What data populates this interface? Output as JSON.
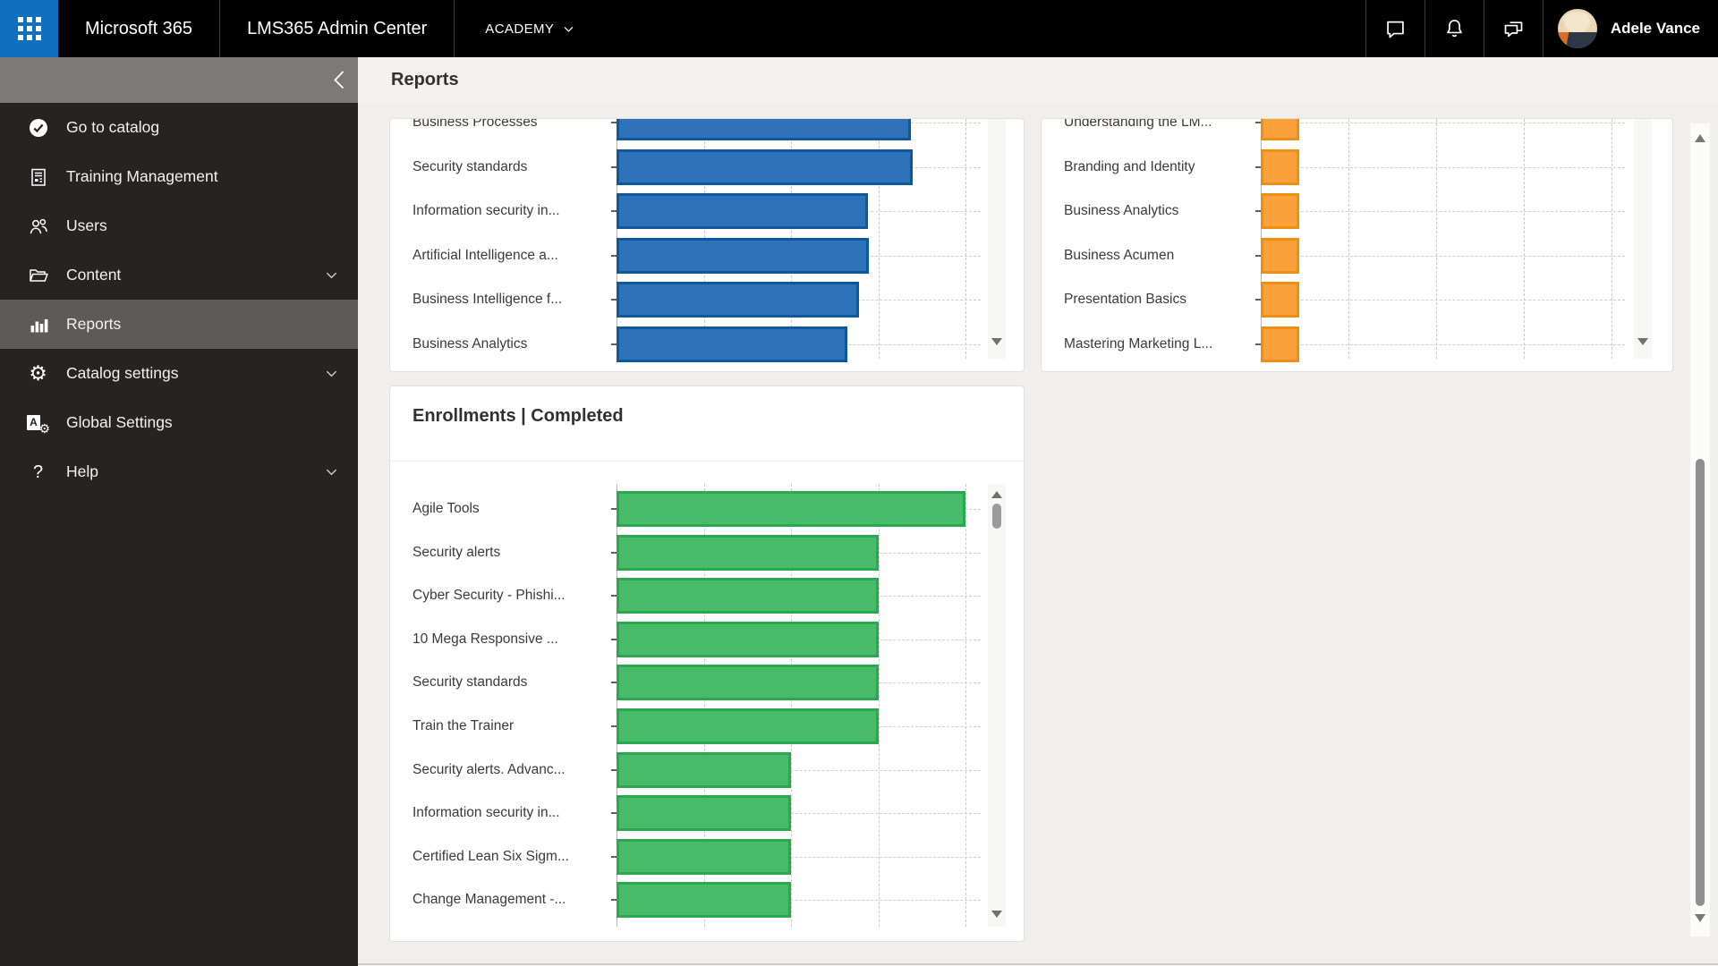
{
  "topbar": {
    "product": "Microsoft 365",
    "app": "LMS365 Admin Center",
    "tenant": "ACADEMY",
    "user": "Adele Vance",
    "actions": [
      {
        "icon": "chat"
      },
      {
        "icon": "bell"
      },
      {
        "icon": "feedback"
      }
    ]
  },
  "sidebar": {
    "collapse_icon": "chevron-left",
    "items": [
      {
        "icon": "check-circle",
        "label": "Go to catalog",
        "chevron": false,
        "active": false
      },
      {
        "icon": "document",
        "label": "Training Management",
        "chevron": false,
        "active": false
      },
      {
        "icon": "users",
        "label": "Users",
        "chevron": false,
        "active": false
      },
      {
        "icon": "folder",
        "label": "Content",
        "chevron": true,
        "active": false
      },
      {
        "icon": "bar-chart",
        "label": "Reports",
        "chevron": false,
        "active": true
      },
      {
        "icon": "gear",
        "label": "Catalog settings",
        "chevron": true,
        "active": false
      },
      {
        "icon": "language-settings",
        "label": "Global Settings",
        "chevron": false,
        "active": false
      },
      {
        "icon": "help",
        "label": "Help",
        "chevron": true,
        "active": false
      }
    ]
  },
  "page": {
    "title": "Reports"
  },
  "colors": {
    "topbar_bg": "#000000",
    "waffle_blue": "#1070c0",
    "sidebar_bg": "#252423",
    "sidebar_active_bg": "#5d5b58",
    "header_band": "#f2f1f0",
    "content_bg": "#f0efed",
    "card_bg": "#ffffff",
    "blue_bar": "#2e73b8",
    "orange_bar": "#f9a23c",
    "green_bar": "#49ba69"
  },
  "chart_data": [
    {
      "type": "bar",
      "orientation": "horizontal",
      "title": "",
      "title_visible": false,
      "first_category_clipped": true,
      "bar_color": "#2e73b8",
      "bar_border": "#10589e",
      "categories": [
        "Business Processes",
        "Security standards",
        "Information security in...",
        "Artificial Intelligence a...",
        "Business Intelligence f...",
        "Business Analytics"
      ],
      "values": [
        3.37,
        3.39,
        2.88,
        2.89,
        2.78,
        2.65
      ],
      "x_axis": {
        "labels_visible": false,
        "gridlines": "dashed",
        "unit": "relative gridline units"
      }
    },
    {
      "type": "bar",
      "orientation": "horizontal",
      "title": "",
      "title_visible": false,
      "first_category_clipped": true,
      "bar_color": "#f9a23c",
      "bar_border": "#ee8e12",
      "categories": [
        "Understanding the LM...",
        "Branding and Identity",
        "Business Analytics",
        "Business Acumen",
        "Presentation Basics",
        "Mastering Marketing L..."
      ],
      "values": [
        0.44,
        0.44,
        0.44,
        0.44,
        0.44,
        0.44
      ],
      "x_axis": {
        "labels_visible": false,
        "gridlines": "dashed",
        "unit": "relative gridline units"
      }
    },
    {
      "type": "bar",
      "orientation": "horizontal",
      "title": "Enrollments | Completed",
      "title_visible": true,
      "first_category_clipped": false,
      "bar_color": "#49ba69",
      "bar_border": "#2aa84f",
      "categories": [
        "Agile Tools",
        "Security alerts",
        "Cyber Security - Phishi...",
        "10 Mega Responsive ...",
        "Security standards",
        "Train the Trainer",
        "Security alerts. Advanc...",
        "Information security in...",
        "Certified Lean Six Sigm...",
        "Change Management -..."
      ],
      "values": [
        4,
        3,
        3,
        3,
        3,
        3,
        2,
        2,
        2,
        2
      ],
      "x_axis": {
        "labels_visible": false,
        "gridlines": "dashed",
        "unit": "relative gridline units"
      }
    }
  ]
}
